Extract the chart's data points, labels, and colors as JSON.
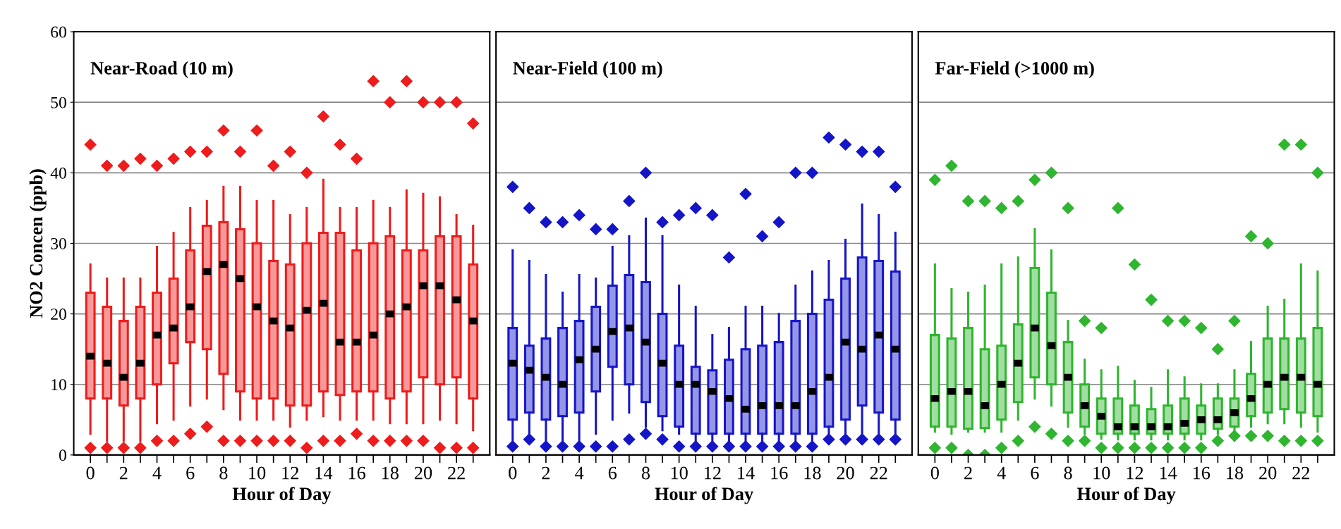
{
  "chart_data": [
    {
      "type": "box",
      "title": "Near-Road (10 m)",
      "xlabel": "Hour of Day",
      "ylabel": "NO2 Concen (ppb)",
      "categories": [
        "0",
        null,
        "2",
        null,
        "4",
        null,
        "6",
        null,
        "8",
        null,
        "10",
        null,
        "12",
        null,
        "14",
        null,
        "16",
        null,
        "18",
        null,
        "20",
        null,
        "22",
        null
      ],
      "ylim": [
        0,
        60
      ],
      "yticks": [
        0,
        10,
        20,
        30,
        40,
        50,
        60
      ],
      "grid": "y",
      "marker": "diamond",
      "series": [
        {
          "color": "#ee1c1c",
          "boxes": [
            {
              "low": 3,
              "q1": 8,
              "median": 14,
              "q3": 23,
              "high": 27,
              "outliers": [
                44,
                1
              ]
            },
            {
              "low": 2,
              "q1": 8,
              "median": 13,
              "q3": 21,
              "high": 25,
              "outliers": [
                41,
                1
              ]
            },
            {
              "low": 2,
              "q1": 7,
              "median": 11,
              "q3": 19,
              "high": 25,
              "outliers": [
                41,
                1
              ]
            },
            {
              "low": 2,
              "q1": 8,
              "median": 13,
              "q3": 21,
              "high": 25,
              "outliers": [
                42,
                1
              ]
            },
            {
              "low": 4.5,
              "q1": 10,
              "median": 17,
              "q3": 23,
              "high": 29.5,
              "outliers": [
                41,
                2
              ]
            },
            {
              "low": 5,
              "q1": 13,
              "median": 18,
              "q3": 25,
              "high": 31.5,
              "outliers": [
                42,
                2
              ]
            },
            {
              "low": 7,
              "q1": 16,
              "median": 21,
              "q3": 29,
              "high": 35,
              "outliers": [
                43,
                3
              ]
            },
            {
              "low": 8,
              "q1": 15,
              "median": 26,
              "q3": 32.5,
              "high": 36,
              "outliers": [
                43,
                4
              ]
            },
            {
              "low": 6.5,
              "q1": 11.5,
              "median": 27,
              "q3": 33,
              "high": 38,
              "outliers": [
                46,
                2
              ]
            },
            {
              "low": 5,
              "q1": 9,
              "median": 25,
              "q3": 32,
              "high": 38,
              "outliers": [
                43,
                2
              ]
            },
            {
              "low": 5,
              "q1": 8,
              "median": 21,
              "q3": 30,
              "high": 36,
              "outliers": [
                46,
                2
              ]
            },
            {
              "low": 5,
              "q1": 8,
              "median": 19,
              "q3": 27.5,
              "high": 36,
              "outliers": [
                41,
                2
              ]
            },
            {
              "low": 4,
              "q1": 7,
              "median": 18,
              "q3": 27,
              "high": 34,
              "outliers": [
                43,
                2
              ]
            },
            {
              "low": 5,
              "q1": 7,
              "median": 20.5,
              "q3": 30,
              "high": 35,
              "outliers": [
                40,
                1
              ]
            },
            {
              "low": 5.5,
              "q1": 9,
              "median": 21.5,
              "q3": 31.5,
              "high": 39,
              "outliers": [
                48,
                2
              ]
            },
            {
              "low": 5,
              "q1": 8.5,
              "median": 16,
              "q3": 31.5,
              "high": 35,
              "outliers": [
                44,
                2
              ]
            },
            {
              "low": 5,
              "q1": 9,
              "median": 16,
              "q3": 29,
              "high": 35,
              "outliers": [
                42,
                3
              ]
            },
            {
              "low": 5,
              "q1": 9,
              "median": 17,
              "q3": 30,
              "high": 36,
              "outliers": [
                53,
                2
              ]
            },
            {
              "low": 4.5,
              "q1": 8,
              "median": 20,
              "q3": 31,
              "high": 35,
              "outliers": [
                50,
                2
              ]
            },
            {
              "low": 4.5,
              "q1": 9,
              "median": 21,
              "q3": 29,
              "high": 37.5,
              "outliers": [
                53,
                2
              ]
            },
            {
              "low": 4.5,
              "q1": 11,
              "median": 24,
              "q3": 29,
              "high": 37,
              "outliers": [
                50,
                2
              ]
            },
            {
              "low": 5,
              "q1": 10,
              "median": 24,
              "q3": 31,
              "high": 36.5,
              "outliers": [
                50,
                1
              ]
            },
            {
              "low": 4.5,
              "q1": 11,
              "median": 22,
              "q3": 31,
              "high": 34,
              "outliers": [
                50,
                1
              ]
            },
            {
              "low": 3.5,
              "q1": 8,
              "median": 19,
              "q3": 27,
              "high": 32.5,
              "outliers": [
                47,
                1
              ]
            }
          ]
        }
      ]
    },
    {
      "type": "box",
      "title": "Near-Field (100 m)",
      "xlabel": "Hour of Day",
      "categories": [
        "0",
        null,
        "2",
        null,
        "4",
        null,
        "6",
        null,
        "8",
        null,
        "10",
        null,
        "12",
        null,
        "14",
        null,
        "16",
        null,
        "18",
        null,
        "20",
        null,
        "22",
        null
      ],
      "ylim": [
        0,
        60
      ],
      "yticks": [
        0,
        10,
        20,
        30,
        40,
        50,
        60
      ],
      "tick_labels": "x",
      "grid": "y",
      "marker": "diamond",
      "series": [
        {
          "color": "#1515c8",
          "boxes": [
            {
              "low": 2,
              "q1": 5,
              "median": 13,
              "q3": 18,
              "high": 29,
              "outliers": [
                38,
                1.2
              ]
            },
            {
              "low": 2.6,
              "q1": 6,
              "median": 12,
              "q3": 15.5,
              "high": 27.5,
              "outliers": [
                35,
                2.2
              ]
            },
            {
              "low": 2,
              "q1": 5,
              "median": 11,
              "q3": 16.5,
              "high": 25.5,
              "outliers": [
                33,
                1.2
              ]
            },
            {
              "low": 2,
              "q1": 5.5,
              "median": 10,
              "q3": 18,
              "high": 23,
              "outliers": [
                33,
                1.2
              ]
            },
            {
              "low": 2,
              "q1": 6,
              "median": 13.5,
              "q3": 19,
              "high": 25.5,
              "outliers": [
                34,
                1.2
              ]
            },
            {
              "low": 3,
              "q1": 9,
              "median": 15,
              "q3": 21,
              "high": 25,
              "outliers": [
                32,
                1.2
              ]
            },
            {
              "low": 5,
              "q1": 12.5,
              "median": 17.5,
              "q3": 24,
              "high": 29.5,
              "outliers": [
                32,
                1.2
              ]
            },
            {
              "low": 6,
              "q1": 10,
              "median": 18,
              "q3": 25.5,
              "high": 31,
              "outliers": [
                36,
                2.2
              ]
            },
            {
              "low": 4,
              "q1": 7.5,
              "median": 16,
              "q3": 24.5,
              "high": 33.5,
              "outliers": [
                40,
                3
              ]
            },
            {
              "low": 3.5,
              "q1": 5.5,
              "median": 13,
              "q3": 20,
              "high": 31,
              "outliers": [
                33,
                2.2
              ]
            },
            {
              "low": 3,
              "q1": 4,
              "median": 10,
              "q3": 15.5,
              "high": 24,
              "outliers": [
                34,
                1.2
              ]
            },
            {
              "low": 2,
              "q1": 3,
              "median": 10,
              "q3": 12.5,
              "high": 21,
              "outliers": [
                35,
                1.2
              ]
            },
            {
              "low": 2,
              "q1": 3,
              "median": 9,
              "q3": 12,
              "high": 17,
              "outliers": [
                34,
                1.2
              ]
            },
            {
              "low": 2,
              "q1": 3,
              "median": 8,
              "q3": 13.5,
              "high": 18,
              "outliers": [
                28,
                1.2
              ]
            },
            {
              "low": 2,
              "q1": 3,
              "median": 6.5,
              "q3": 15,
              "high": 21,
              "outliers": [
                37,
                1.2
              ]
            },
            {
              "low": 2,
              "q1": 3,
              "median": 7,
              "q3": 15.5,
              "high": 21,
              "outliers": [
                31,
                1.2
              ]
            },
            {
              "low": 2,
              "q1": 3,
              "median": 7,
              "q3": 16,
              "high": 20,
              "outliers": [
                33,
                1.2
              ]
            },
            {
              "low": 2,
              "q1": 3,
              "median": 7,
              "q3": 19,
              "high": 24,
              "outliers": [
                40,
                1.2
              ]
            },
            {
              "low": 2,
              "q1": 3,
              "median": 9,
              "q3": 20,
              "high": 26,
              "outliers": [
                40,
                1.2
              ]
            },
            {
              "low": 3,
              "q1": 4,
              "median": 11,
              "q3": 22,
              "high": 27.5,
              "outliers": [
                45,
                2.2
              ]
            },
            {
              "low": 3,
              "q1": 5,
              "median": 16,
              "q3": 25,
              "high": 30.5,
              "outliers": [
                44,
                2.2
              ]
            },
            {
              "low": 3,
              "q1": 7,
              "median": 15,
              "q3": 28,
              "high": 35.5,
              "outliers": [
                43,
                2.2
              ]
            },
            {
              "low": 3,
              "q1": 6,
              "median": 17,
              "q3": 27.5,
              "high": 34,
              "outliers": [
                43,
                2.2
              ]
            },
            {
              "low": 3,
              "q1": 5,
              "median": 15,
              "q3": 26,
              "high": 31.5,
              "outliers": [
                38,
                2.2
              ]
            }
          ]
        }
      ]
    },
    {
      "type": "box",
      "title": "Far-Field (>1000 m)",
      "xlabel": "Hour of Day",
      "categories": [
        "0",
        null,
        "2",
        null,
        "4",
        null,
        "6",
        null,
        "8",
        null,
        "10",
        null,
        "12",
        null,
        "14",
        null,
        "16",
        null,
        "18",
        null,
        "20",
        null,
        "22",
        null
      ],
      "ylim": [
        0,
        60
      ],
      "yticks": [
        0,
        10,
        20,
        30,
        40,
        50,
        60
      ],
      "tick_labels": "x",
      "grid": "y",
      "marker": "diamond",
      "series": [
        {
          "color": "#2fb52f",
          "boxes": [
            {
              "low": 3.3,
              "q1": 4,
              "median": 8,
              "q3": 17,
              "high": 27,
              "outliers": [
                39,
                1
              ]
            },
            {
              "low": 3,
              "q1": 4,
              "median": 9,
              "q3": 16.5,
              "high": 23.5,
              "outliers": [
                41,
                1
              ]
            },
            {
              "low": 3.3,
              "q1": 3.7,
              "median": 9,
              "q3": 18,
              "high": 23,
              "outliers": [
                36,
                0
              ]
            },
            {
              "low": 3.3,
              "q1": 3.8,
              "median": 7,
              "q3": 15,
              "high": 24,
              "outliers": [
                36,
                0
              ]
            },
            {
              "low": 3.3,
              "q1": 5,
              "median": 10,
              "q3": 15.5,
              "high": 27,
              "outliers": [
                35,
                1
              ]
            },
            {
              "low": 5,
              "q1": 7.5,
              "median": 13,
              "q3": 18.5,
              "high": 28,
              "outliers": [
                36,
                2
              ]
            },
            {
              "low": 8,
              "q1": 11,
              "median": 18,
              "q3": 26.5,
              "high": 32,
              "outliers": [
                39,
                4
              ]
            },
            {
              "low": 7,
              "q1": 10,
              "median": 15.5,
              "q3": 23,
              "high": 29,
              "outliers": [
                40,
                3
              ]
            },
            {
              "low": 4,
              "q1": 6,
              "median": 11,
              "q3": 16,
              "high": 19,
              "outliers": [
                35,
                2
              ]
            },
            {
              "low": 3,
              "q1": 4,
              "median": 7,
              "q3": 10,
              "high": 13.5,
              "outliers": [
                19,
                2
              ]
            },
            {
              "low": 2.3,
              "q1": 3,
              "median": 5.5,
              "q3": 8,
              "high": 12,
              "outliers": [
                18,
                1
              ]
            },
            {
              "low": 2.2,
              "q1": 3,
              "median": 4,
              "q3": 8,
              "high": 12.5,
              "outliers": [
                35,
                1
              ]
            },
            {
              "low": 2.2,
              "q1": 3,
              "median": 4,
              "q3": 7,
              "high": 10.5,
              "outliers": [
                27,
                1
              ]
            },
            {
              "low": 2.2,
              "q1": 3,
              "median": 4,
              "q3": 6.5,
              "high": 9.5,
              "outliers": [
                22,
                1
              ]
            },
            {
              "low": 2.2,
              "q1": 3,
              "median": 4,
              "q3": 7,
              "high": 12,
              "outliers": [
                19,
                1
              ]
            },
            {
              "low": 2.2,
              "q1": 3,
              "median": 4.5,
              "q3": 8,
              "high": 11,
              "outliers": [
                19,
                1
              ]
            },
            {
              "low": 2.2,
              "q1": 3,
              "median": 5,
              "q3": 7,
              "high": 10,
              "outliers": [
                18,
                1
              ]
            },
            {
              "low": 3,
              "q1": 3.7,
              "median": 5,
              "q3": 8,
              "high": 10,
              "outliers": [
                15,
                2
              ]
            },
            {
              "low": 3.3,
              "q1": 4,
              "median": 6,
              "q3": 8,
              "high": 12,
              "outliers": [
                19,
                2.7
              ]
            },
            {
              "low": 4,
              "q1": 5.5,
              "median": 8,
              "q3": 11.5,
              "high": 16,
              "outliers": [
                31,
                2.7
              ]
            },
            {
              "low": 4.5,
              "q1": 6,
              "median": 10,
              "q3": 16.5,
              "high": 21,
              "outliers": [
                30,
                2.7
              ]
            },
            {
              "low": 4.5,
              "q1": 6.5,
              "median": 11,
              "q3": 16.5,
              "high": 22,
              "outliers": [
                44,
                2
              ]
            },
            {
              "low": 4,
              "q1": 6,
              "median": 11,
              "q3": 16.5,
              "high": 27,
              "outliers": [
                44,
                2
              ]
            },
            {
              "low": 3.3,
              "q1": 5.5,
              "median": 10,
              "q3": 18,
              "high": 26,
              "outliers": [
                40,
                2
              ]
            }
          ]
        }
      ]
    }
  ]
}
